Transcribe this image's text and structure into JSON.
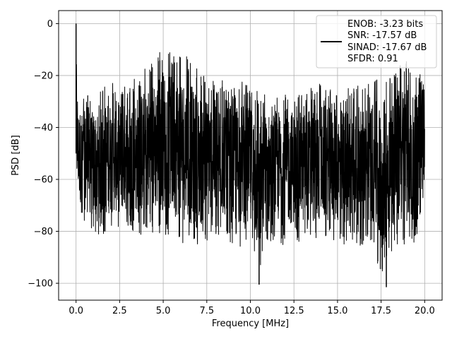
{
  "chart_data": {
    "type": "line",
    "title": "",
    "xlabel": "Frequency [MHz]",
    "ylabel": "PSD [dB]",
    "xlim": [
      -1.0,
      21.0
    ],
    "ylim": [
      -106.5,
      5.0
    ],
    "x_ticks": [
      0.0,
      2.5,
      5.0,
      7.5,
      10.0,
      12.5,
      15.0,
      17.5,
      20.0
    ],
    "x_tick_labels": [
      "0.0",
      "2.5",
      "5.0",
      "7.5",
      "10.0",
      "12.5",
      "15.0",
      "17.5",
      "20.0"
    ],
    "y_ticks": [
      0,
      -20,
      -40,
      -60,
      -80,
      -100
    ],
    "y_tick_labels": [
      "0",
      "−20",
      "−40",
      "−60",
      "−80",
      "−100"
    ],
    "grid": true,
    "legend_position": "top-right",
    "legend_lines": [
      "ENOB: -3.23 bits",
      "SNR: -17.57 dB",
      "SINAD: -17.67 dB",
      "SFDR: 0.91"
    ],
    "series": [
      {
        "color": "#000000",
        "x": [
          0,
          0.02,
          0.05,
          0.1,
          0.3,
          0.6,
          1,
          1.5,
          2,
          2.5,
          3,
          3.5,
          4,
          4.5,
          5,
          5.5,
          6,
          6.5,
          7,
          7.5,
          8,
          8.5,
          9,
          9.5,
          10,
          10.5,
          11,
          11.5,
          12,
          12.5,
          13,
          13.5,
          14,
          14.5,
          15,
          15.5,
          16,
          16.5,
          17,
          17.5,
          18,
          18.5,
          19,
          19.5,
          20
        ],
        "upper_envelope": [
          -28,
          0,
          -28,
          -27,
          -28,
          -27,
          -27,
          -25,
          -22,
          -23,
          -24,
          -20,
          -17,
          -14,
          -8,
          -12,
          -10,
          -14,
          -18,
          -20,
          -22,
          -21,
          -24,
          -22,
          -24,
          -26,
          -27,
          -26,
          -25,
          -26,
          -27,
          -24,
          -23,
          -25,
          -26,
          -24,
          -24,
          -24,
          -22,
          -20,
          -18,
          -16,
          -14,
          -16,
          -18
        ],
        "lower_envelope": [
          -55,
          -55,
          -66,
          -70,
          -76,
          -79,
          -82,
          -82,
          -80,
          -80,
          -79,
          -81,
          -82,
          -81,
          -81,
          -83,
          -84,
          -86,
          -88,
          -84,
          -82,
          -82,
          -85,
          -86,
          -89,
          -97,
          -86,
          -84,
          -86,
          -84,
          -84,
          -85,
          -84,
          -83,
          -84,
          -86,
          -85,
          -86,
          -84,
          -100,
          -88,
          -86,
          -85,
          -84,
          -65
        ],
        "notable_points": [
          {
            "x": 0.0,
            "y": 0.0
          },
          {
            "x": 10.5,
            "y": -100.5
          },
          {
            "x": 17.8,
            "y": -101.5
          }
        ]
      }
    ]
  }
}
